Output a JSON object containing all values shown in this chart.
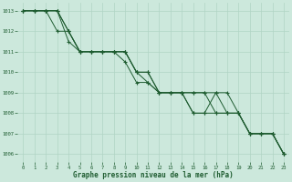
{
  "title": "Graphe pression niveau de la mer (hPa)",
  "bg_color": "#cce8dc",
  "grid_color": "#b0d4c4",
  "line_color": "#1e5c30",
  "xlim": [
    -0.5,
    23.5
  ],
  "ylim": [
    1005.6,
    1013.4
  ],
  "yticks": [
    1006,
    1007,
    1008,
    1009,
    1010,
    1011,
    1012,
    1013
  ],
  "xticks": [
    0,
    1,
    2,
    3,
    4,
    5,
    6,
    7,
    8,
    9,
    10,
    11,
    12,
    13,
    14,
    15,
    16,
    17,
    18,
    19,
    20,
    21,
    22,
    23
  ],
  "series": [
    [
      1013,
      1013,
      1013,
      1012,
      1012,
      1011,
      1011,
      1011,
      1011,
      1011,
      1010,
      1010,
      1009,
      1009,
      1009,
      1009,
      1009,
      1009,
      1009,
      1008,
      1007,
      1007,
      1007,
      1006
    ],
    [
      1013,
      1013,
      1013,
      1013,
      1012,
      1011,
      1011,
      1011,
      1011,
      1011,
      1010,
      1010,
      1009,
      1009,
      1009,
      1009,
      1009,
      1008,
      1008,
      1008,
      1007,
      1007,
      1007,
      1006
    ],
    [
      1013,
      1013,
      1013,
      1013,
      1012,
      1011,
      1011,
      1011,
      1011,
      1011,
      1010,
      1009.5,
      1009,
      1009,
      1009,
      1008,
      1008,
      1009,
      1008,
      1008,
      1007,
      1007,
      1007,
      1006
    ],
    [
      1013,
      1013,
      1013,
      1013,
      1011.5,
      1011,
      1011,
      1011,
      1011,
      1010.5,
      1009.5,
      1009.5,
      1009,
      1009,
      1009,
      1008,
      1008,
      1008,
      1008,
      1008,
      1007,
      1007,
      1007,
      1006
    ]
  ]
}
